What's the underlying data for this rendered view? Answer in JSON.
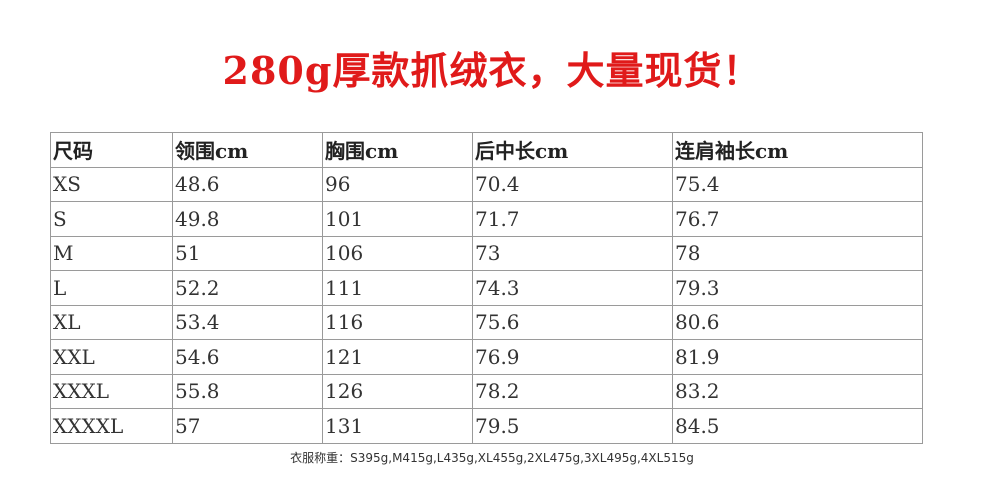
{
  "title": "280g厚款抓绒衣，大量现货！",
  "table": {
    "headers": [
      "尺码",
      "领围cm",
      "胸围cm",
      "后中长cm",
      "连肩袖长cm"
    ],
    "rows": [
      [
        "XS",
        "48.6",
        "96",
        "70.4",
        "75.4"
      ],
      [
        "S",
        "49.8",
        "101",
        "71.7",
        "76.7"
      ],
      [
        "M",
        "51",
        "106",
        "73",
        "78"
      ],
      [
        "L",
        "52.2",
        "111",
        "74.3",
        "79.3"
      ],
      [
        "XL",
        "53.4",
        "116",
        "75.6",
        "80.6"
      ],
      [
        "XXL",
        "54.6",
        "121",
        "76.9",
        "81.9"
      ],
      [
        "XXXL",
        "55.8",
        "126",
        "78.2",
        "83.2"
      ],
      [
        "XXXXL",
        "57",
        "131",
        "79.5",
        "84.5"
      ]
    ]
  },
  "note": "衣服称重：S395g,M415g,L435g,XL455g,2XL475g,3XL495g,4XL515g",
  "colors": {
    "title": "#e01a1a",
    "border": "#9a9a9a",
    "text": "#333333"
  }
}
